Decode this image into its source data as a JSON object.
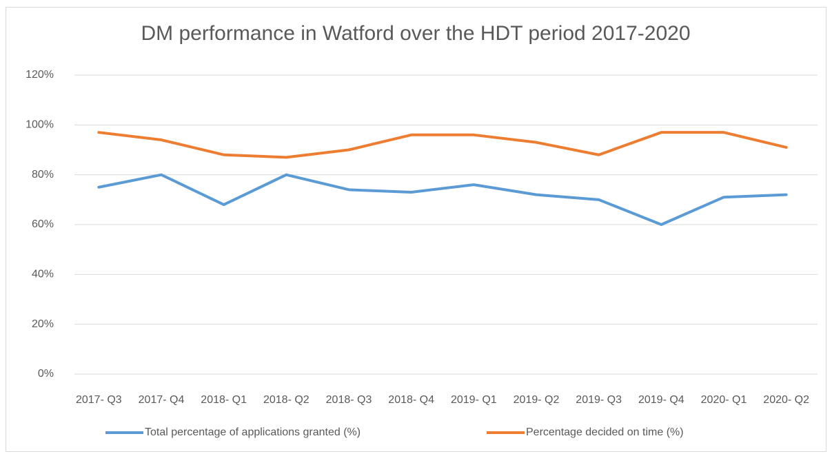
{
  "chart_data": {
    "type": "line",
    "title": "DM performance in Watford over the HDT period 2017-2020",
    "categories": [
      "2017- Q3",
      "2017- Q4",
      "2018- Q1",
      "2018- Q2",
      "2018- Q3",
      "2018- Q4",
      "2019- Q1",
      "2019- Q2",
      "2019- Q3",
      "2019- Q4",
      "2020- Q1",
      "2020- Q2"
    ],
    "series": [
      {
        "name": "Total percentage of applications granted (%)",
        "color": "#5b9bd5",
        "values": [
          75,
          80,
          68,
          80,
          74,
          73,
          76,
          72,
          70,
          60,
          71,
          72
        ]
      },
      {
        "name": "Percentage decided on time (%)",
        "color": "#ed7d31",
        "values": [
          97,
          94,
          88,
          87,
          90,
          96,
          96,
          93,
          88,
          97,
          97,
          91
        ]
      }
    ],
    "ylim": [
      0,
      120
    ],
    "yticks": [
      {
        "value": 0,
        "label": "0%"
      },
      {
        "value": 20,
        "label": "20%"
      },
      {
        "value": 40,
        "label": "40%"
      },
      {
        "value": 60,
        "label": "60%"
      },
      {
        "value": 80,
        "label": "80%"
      },
      {
        "value": 100,
        "label": "100%"
      },
      {
        "value": 120,
        "label": "120%"
      }
    ],
    "grid": true,
    "legend": "bottom"
  }
}
